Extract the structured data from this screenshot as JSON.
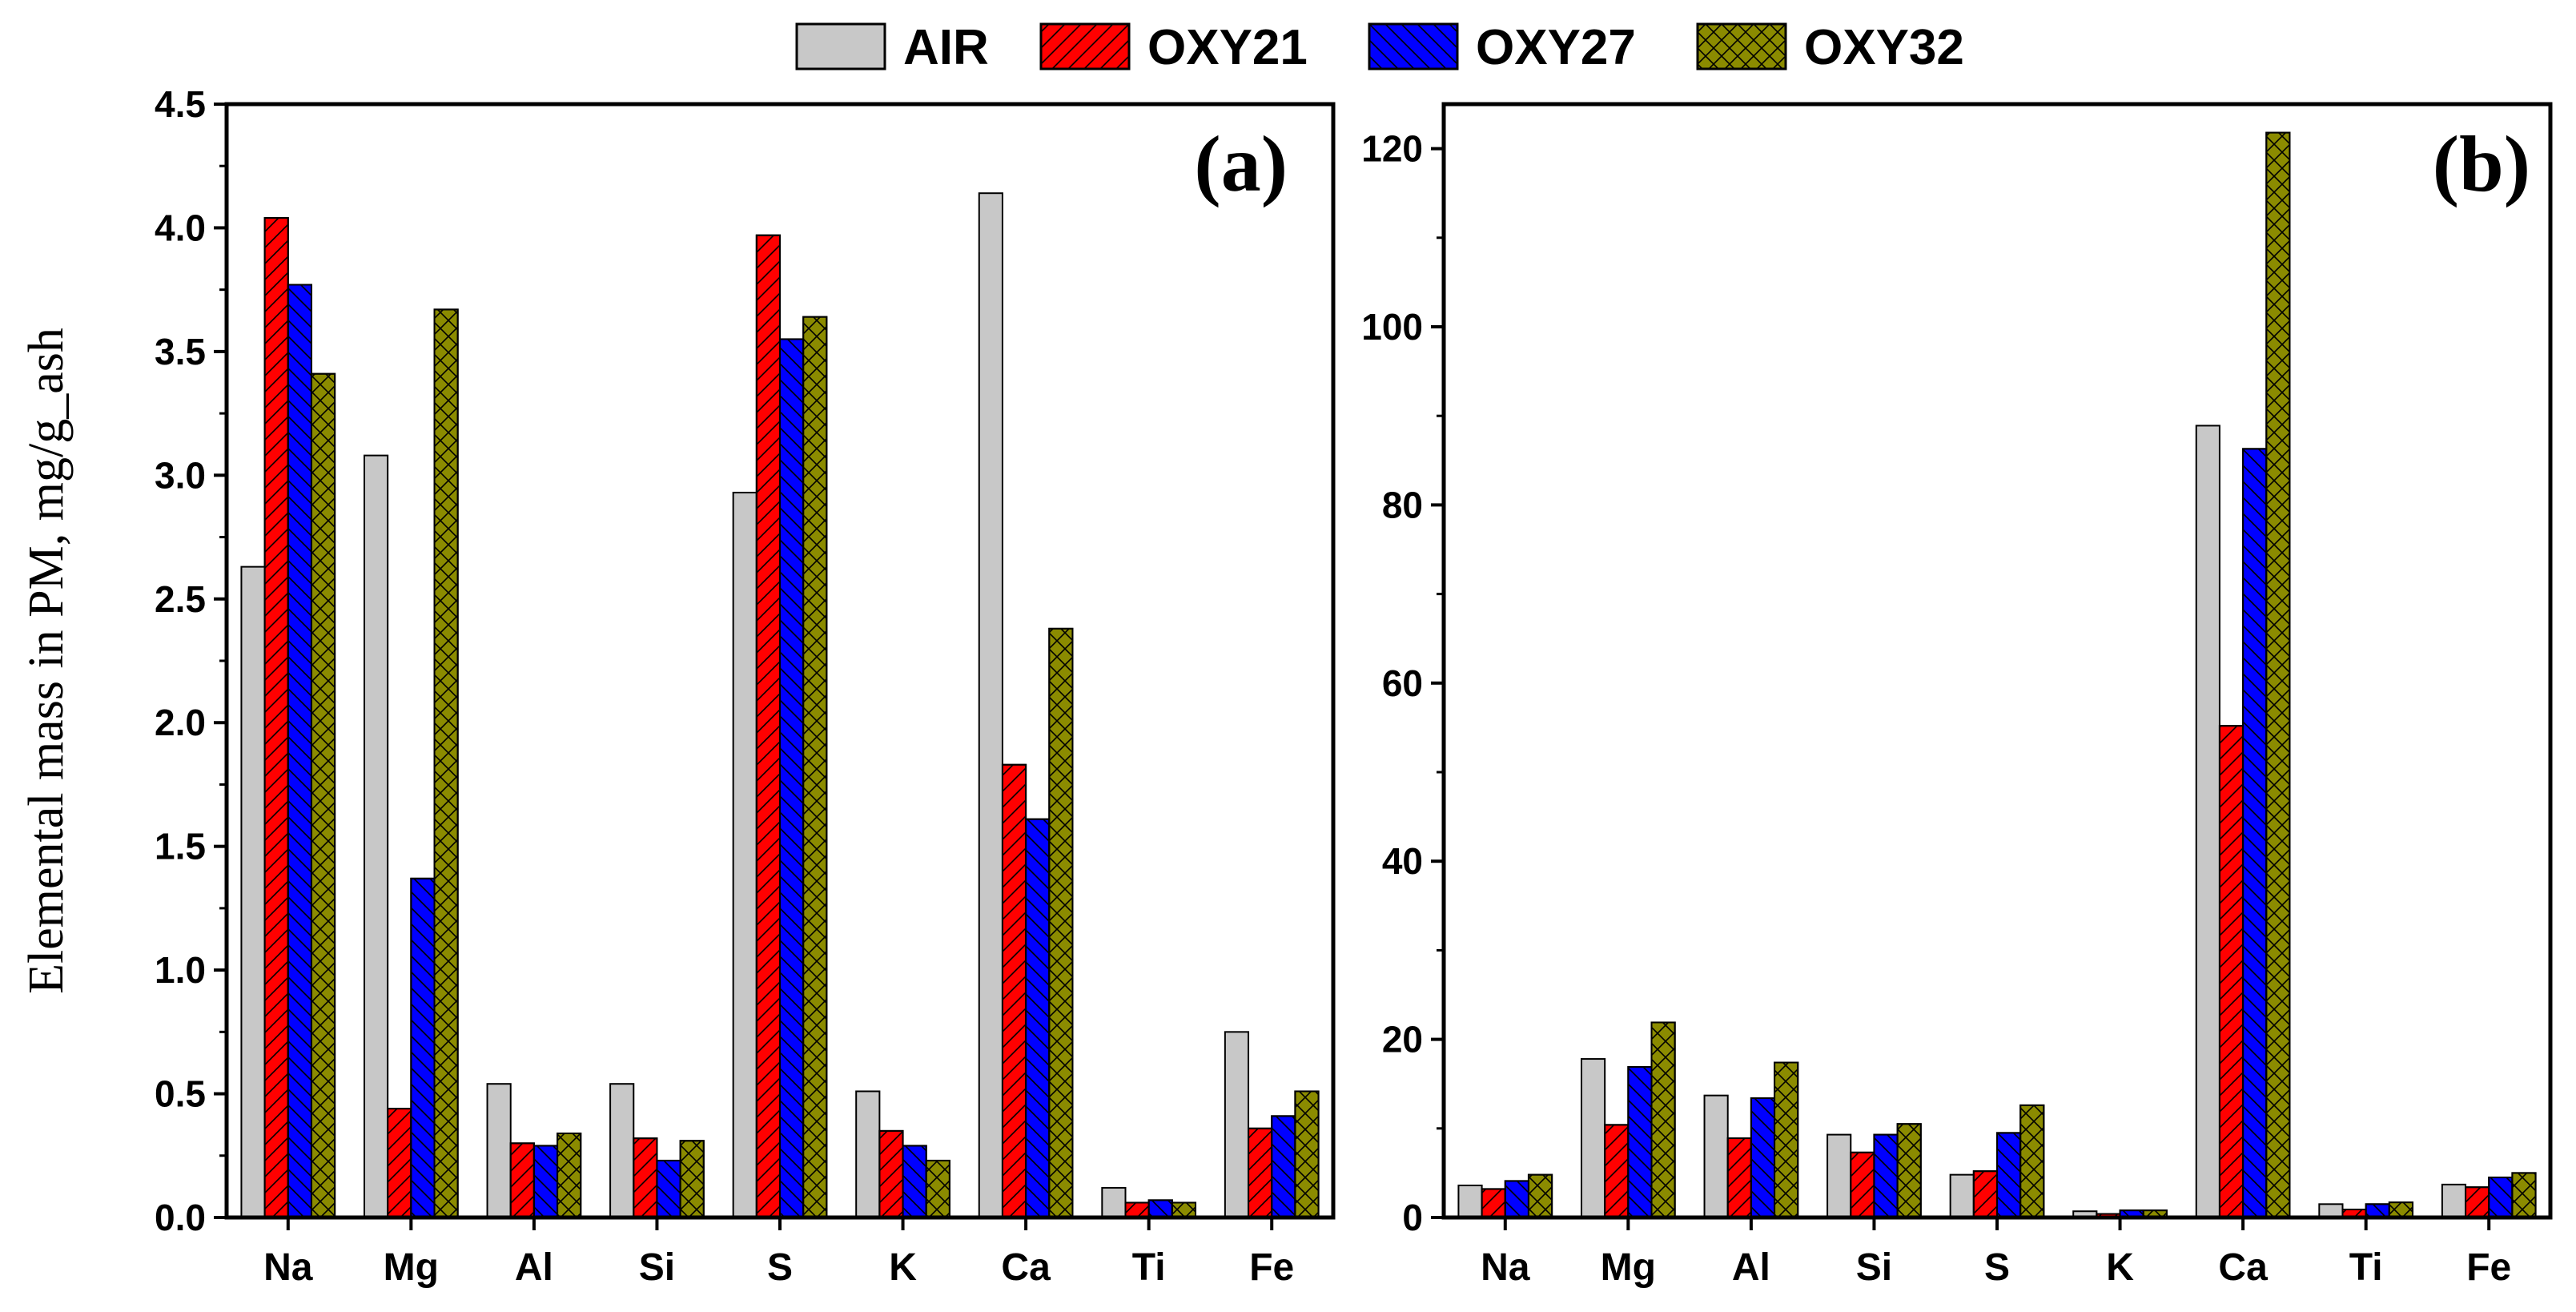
{
  "legend": [
    "AIR",
    "OXY21",
    "OXY27",
    "OXY32"
  ],
  "colors": {
    "AIR": "#c8c8c8",
    "OXY21": "#ff0000",
    "OXY27": "#0000ff",
    "OXY32": "#8b8b00"
  },
  "chart_data": [
    {
      "type": "bar",
      "panel_label": "(a)",
      "ylabel": "Elemental mass in PM, mg/g_ash",
      "xlabel": "",
      "categories": [
        "Na",
        "Mg",
        "Al",
        "Si",
        "S",
        "K",
        "Ca",
        "Ti",
        "Fe"
      ],
      "ylim": [
        0,
        4.5
      ],
      "yticks": [
        "0.0",
        "0.5",
        "1.0",
        "1.5",
        "2.0",
        "2.5",
        "3.0",
        "3.5",
        "4.0",
        "4.5"
      ],
      "series": [
        {
          "name": "AIR",
          "values": [
            2.63,
            3.08,
            0.54,
            0.54,
            2.93,
            0.51,
            4.14,
            0.12,
            0.75
          ]
        },
        {
          "name": "OXY21",
          "values": [
            4.04,
            0.44,
            0.3,
            0.32,
            3.97,
            0.35,
            1.83,
            0.06,
            0.36
          ]
        },
        {
          "name": "OXY27",
          "values": [
            3.77,
            1.37,
            0.29,
            0.23,
            3.55,
            0.29,
            1.61,
            0.07,
            0.41
          ]
        },
        {
          "name": "OXY32",
          "values": [
            3.41,
            3.67,
            0.34,
            0.31,
            3.64,
            0.23,
            2.38,
            0.06,
            0.51
          ]
        }
      ]
    },
    {
      "type": "bar",
      "panel_label": "(b)",
      "ylabel": "",
      "xlabel": "",
      "categories": [
        "Na",
        "Mg",
        "Al",
        "Si",
        "S",
        "K",
        "Ca",
        "Ti",
        "Fe"
      ],
      "ylim": [
        0,
        125
      ],
      "yticks": [
        "0",
        "20",
        "40",
        "60",
        "80",
        "100",
        "120"
      ],
      "series": [
        {
          "name": "AIR",
          "values": [
            3.6,
            17.8,
            13.7,
            9.3,
            4.8,
            0.7,
            88.9,
            1.5,
            3.7
          ]
        },
        {
          "name": "OXY21",
          "values": [
            3.2,
            10.4,
            8.9,
            7.3,
            5.2,
            0.4,
            55.2,
            0.9,
            3.4
          ]
        },
        {
          "name": "OXY27",
          "values": [
            4.1,
            16.9,
            13.4,
            9.3,
            9.5,
            0.8,
            86.3,
            1.5,
            4.5
          ]
        },
        {
          "name": "OXY32",
          "values": [
            4.8,
            21.9,
            17.4,
            10.5,
            12.6,
            0.8,
            121.8,
            1.7,
            5.0
          ]
        }
      ]
    }
  ]
}
